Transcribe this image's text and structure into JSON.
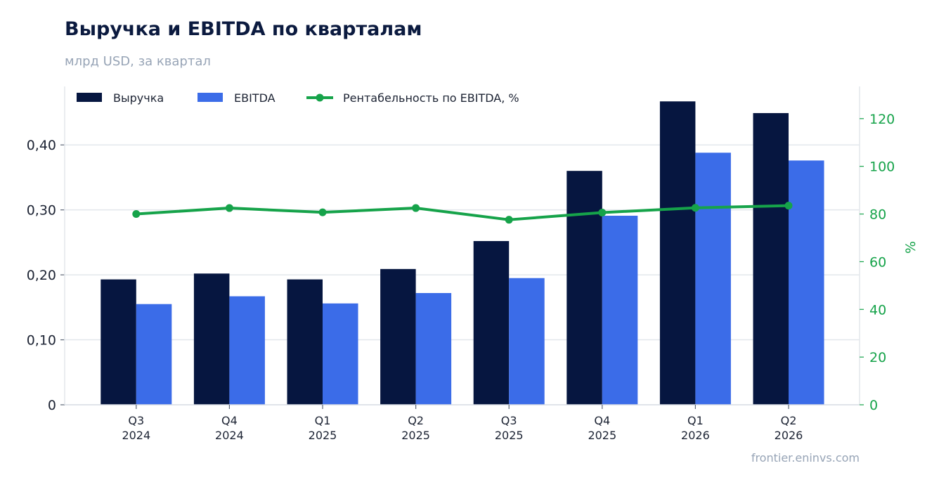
{
  "header": {
    "title": "Выручка и EBITDA по кварталам",
    "subtitle": "млрд USD, за квартал",
    "source": "frontier.eninvs.com"
  },
  "chart_data": {
    "type": "bar",
    "categories": [
      "Q3\n2024",
      "Q4\n2024",
      "Q1\n2025",
      "Q2\n2025",
      "Q3\n2025",
      "Q4\n2025",
      "Q1\n2026",
      "Q2\n2026"
    ],
    "series": [
      {
        "name": "Выручка",
        "type": "bar",
        "axis": "left",
        "color": "#061640",
        "values": [
          0.193,
          0.202,
          0.193,
          0.209,
          0.252,
          0.36,
          0.467,
          0.449
        ]
      },
      {
        "name": "EBITDA",
        "type": "bar",
        "axis": "left",
        "color": "#3b6ce8",
        "values": [
          0.155,
          0.167,
          0.156,
          0.172,
          0.195,
          0.291,
          0.388,
          0.376
        ]
      },
      {
        "name": "Рентабельность по EBITDA, %",
        "type": "line",
        "axis": "right",
        "color": "#16a34a",
        "values": [
          80.0,
          82.5,
          80.7,
          82.5,
          77.6,
          80.6,
          82.6,
          83.5
        ]
      }
    ],
    "left_axis": {
      "ylim": [
        0,
        0.49
      ],
      "ticks": [
        0,
        0.1,
        0.2,
        0.3,
        0.4
      ],
      "tick_labels": [
        "0",
        "0,10",
        "0,20",
        "0,30",
        "0,40"
      ]
    },
    "right_axis": {
      "ylabel": "%",
      "ylim": [
        0,
        133.5
      ],
      "ticks": [
        0,
        20,
        40,
        60,
        80,
        100,
        120
      ],
      "tick_labels": [
        "0",
        "20",
        "40",
        "60",
        "80",
        "100",
        "120"
      ],
      "color": "#16a34a"
    },
    "grid": true,
    "legend": "top-left"
  }
}
